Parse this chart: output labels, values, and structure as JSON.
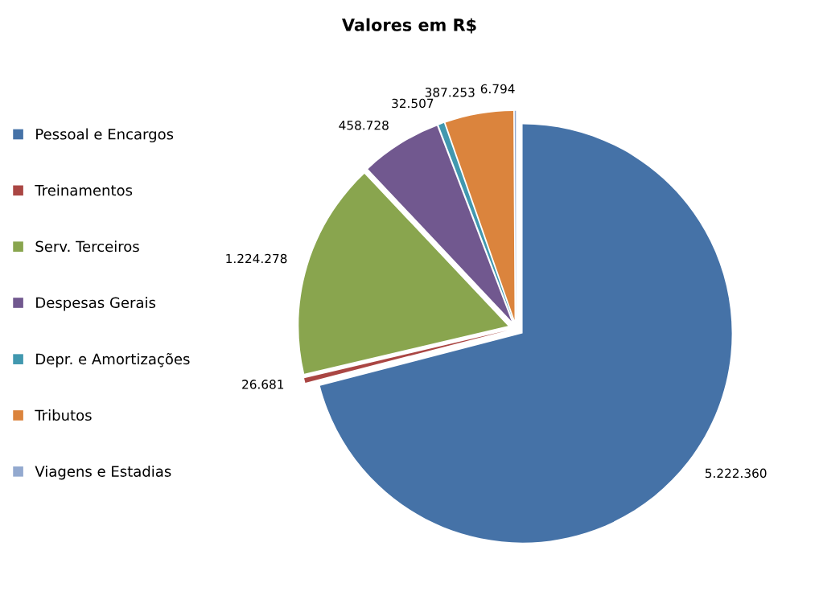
{
  "chart_data": {
    "type": "pie",
    "title": "Valores em R$",
    "categories": [
      "Pessoal e Encargos",
      "Treinamentos",
      "Serv. Terceiros",
      "Despesas Gerais",
      "Depr. e Amortizações",
      "Tributos",
      "Viagens e Estadias"
    ],
    "values": [
      5222360,
      26681,
      1224278,
      458728,
      32507,
      387253,
      6794
    ],
    "value_labels": [
      "5.222.360",
      "26.681",
      "1.224.278",
      "458.728",
      "32.507",
      "387.253",
      "6.794"
    ],
    "colors": [
      "#4572a7",
      "#aa4643",
      "#89a54e",
      "#71588f",
      "#4198af",
      "#db843d",
      "#93a9cf"
    ],
    "legend": "left"
  }
}
